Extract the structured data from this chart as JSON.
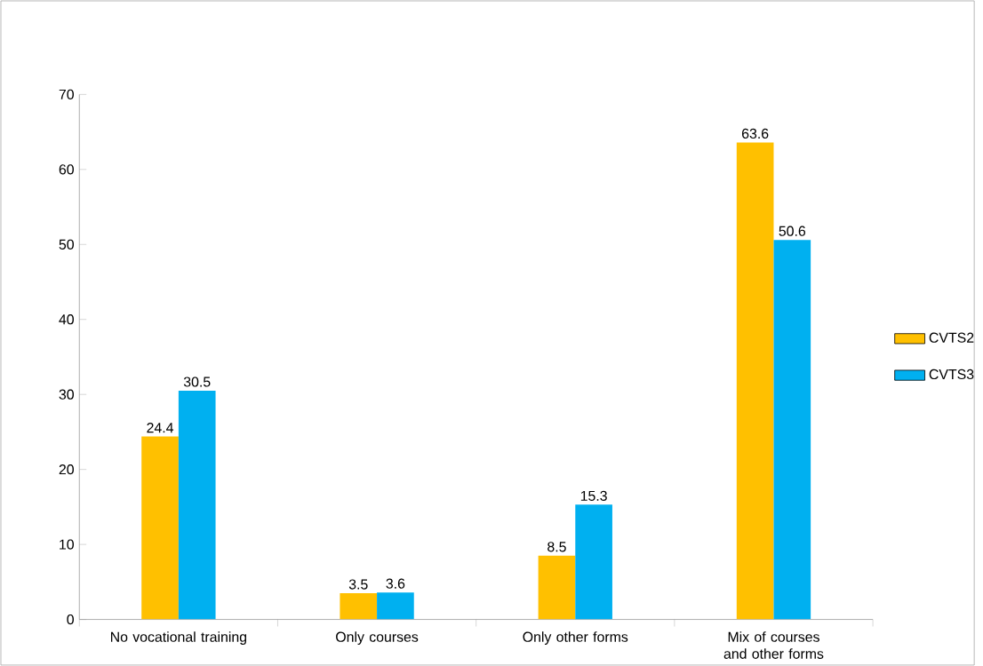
{
  "chart_data": {
    "type": "bar",
    "categories": [
      "No vocational training",
      "Only courses",
      "Only other forms",
      "Mix of courses and other forms"
    ],
    "series": [
      {
        "name": "CVTS2",
        "color": "#ffc000",
        "values": [
          24.4,
          3.5,
          8.5,
          63.6
        ]
      },
      {
        "name": "CVTS3",
        "color": "#00b0f0",
        "values": [
          30.5,
          3.6,
          15.3,
          50.6
        ]
      }
    ],
    "ylim": [
      0,
      70
    ],
    "yticks": [
      0,
      10,
      20,
      30,
      40,
      50,
      60,
      70
    ],
    "data_labels": true,
    "legend": "right"
  }
}
